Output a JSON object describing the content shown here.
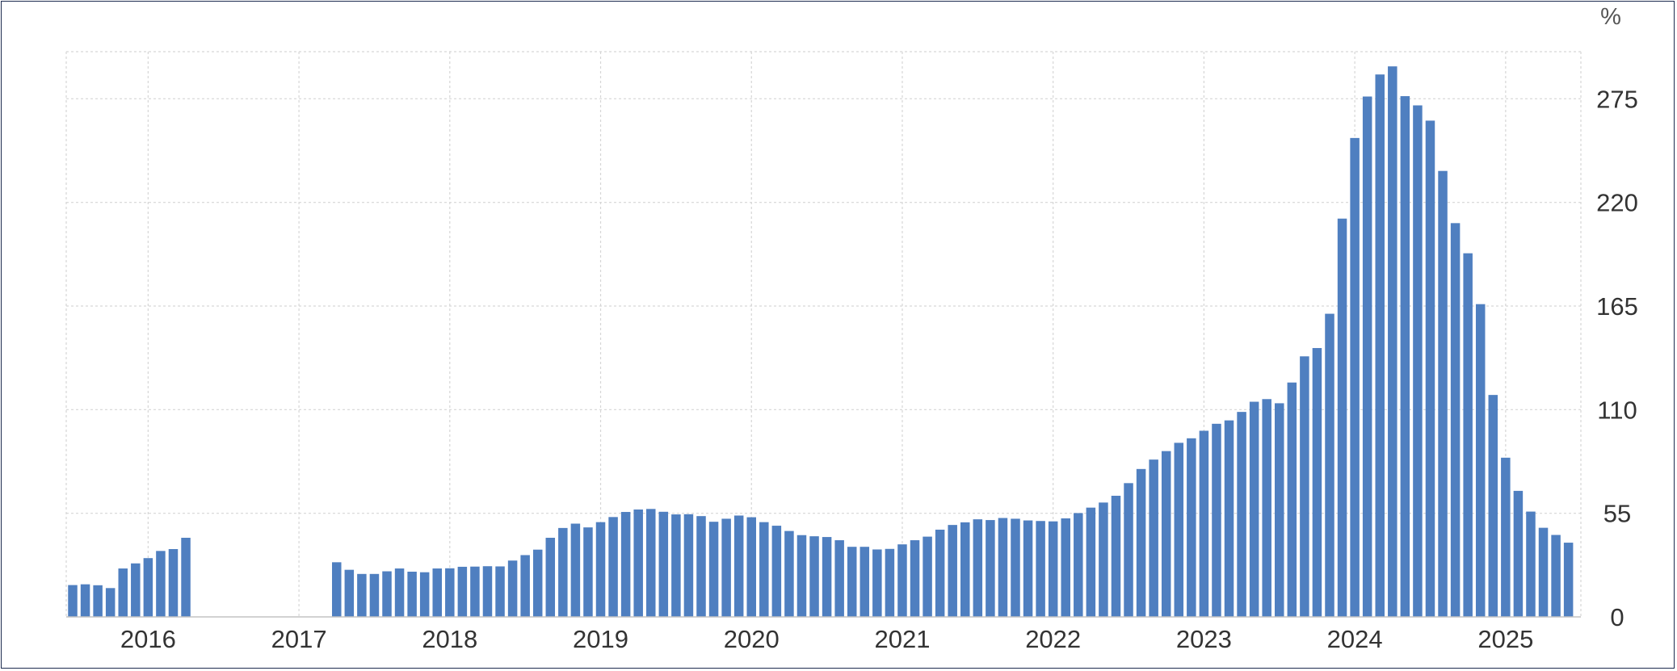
{
  "chart_data": {
    "type": "bar",
    "unit_label": "%",
    "color": "#4f7fc0",
    "ylim": [
      0,
      300
    ],
    "y_ticks": [
      0,
      55,
      110,
      165,
      220,
      275
    ],
    "x_start": "2015-07",
    "x_end": "2025-06",
    "x_tick_labels": [
      "2016",
      "2017",
      "2018",
      "2019",
      "2020",
      "2021",
      "2022",
      "2023",
      "2024",
      "2025"
    ],
    "grid": true,
    "series": [
      {
        "points": [
          {
            "x": "2015-07",
            "y": 16.9
          },
          {
            "x": "2015-08",
            "y": 17.3
          },
          {
            "x": "2015-09",
            "y": 16.8
          },
          {
            "x": "2015-10",
            "y": 15.3
          },
          {
            "x": "2015-11",
            "y": 25.7
          },
          {
            "x": "2015-12",
            "y": 28.4
          },
          {
            "x": "2016-01",
            "y": 31.2
          },
          {
            "x": "2016-02",
            "y": 35.0
          },
          {
            "x": "2016-03",
            "y": 36.0
          },
          {
            "x": "2016-04",
            "y": 42.0
          },
          {
            "x": "2017-04",
            "y": 29.0
          },
          {
            "x": "2017-05",
            "y": 25.0
          },
          {
            "x": "2017-06",
            "y": 22.8
          },
          {
            "x": "2017-07",
            "y": 22.8
          },
          {
            "x": "2017-08",
            "y": 24.2
          },
          {
            "x": "2017-09",
            "y": 25.7
          },
          {
            "x": "2017-10",
            "y": 24.0
          },
          {
            "x": "2017-11",
            "y": 23.7
          },
          {
            "x": "2017-12",
            "y": 25.7
          },
          {
            "x": "2018-01",
            "y": 25.8
          },
          {
            "x": "2018-02",
            "y": 26.6
          },
          {
            "x": "2018-03",
            "y": 26.7
          },
          {
            "x": "2018-04",
            "y": 26.9
          },
          {
            "x": "2018-05",
            "y": 26.8
          },
          {
            "x": "2018-06",
            "y": 29.9
          },
          {
            "x": "2018-07",
            "y": 32.8
          },
          {
            "x": "2018-08",
            "y": 35.7
          },
          {
            "x": "2018-09",
            "y": 42.0
          },
          {
            "x": "2018-10",
            "y": 47.2
          },
          {
            "x": "2018-11",
            "y": 49.5
          },
          {
            "x": "2018-12",
            "y": 47.5
          },
          {
            "x": "2019-01",
            "y": 50.3
          },
          {
            "x": "2019-02",
            "y": 53.0
          },
          {
            "x": "2019-03",
            "y": 55.7
          },
          {
            "x": "2019-04",
            "y": 57.0
          },
          {
            "x": "2019-05",
            "y": 57.3
          },
          {
            "x": "2019-06",
            "y": 55.8
          },
          {
            "x": "2019-07",
            "y": 54.4
          },
          {
            "x": "2019-08",
            "y": 54.5
          },
          {
            "x": "2019-09",
            "y": 53.5
          },
          {
            "x": "2019-10",
            "y": 50.5
          },
          {
            "x": "2019-11",
            "y": 52.1
          },
          {
            "x": "2019-12",
            "y": 53.8
          },
          {
            "x": "2020-01",
            "y": 52.9
          },
          {
            "x": "2020-02",
            "y": 50.3
          },
          {
            "x": "2020-03",
            "y": 48.4
          },
          {
            "x": "2020-04",
            "y": 45.6
          },
          {
            "x": "2020-05",
            "y": 43.4
          },
          {
            "x": "2020-06",
            "y": 42.8
          },
          {
            "x": "2020-07",
            "y": 42.4
          },
          {
            "x": "2020-08",
            "y": 40.7
          },
          {
            "x": "2020-09",
            "y": 37.2
          },
          {
            "x": "2020-10",
            "y": 37.2
          },
          {
            "x": "2020-11",
            "y": 35.8
          },
          {
            "x": "2020-12",
            "y": 36.1
          },
          {
            "x": "2021-01",
            "y": 38.5
          },
          {
            "x": "2021-02",
            "y": 40.7
          },
          {
            "x": "2021-03",
            "y": 42.6
          },
          {
            "x": "2021-04",
            "y": 46.3
          },
          {
            "x": "2021-05",
            "y": 48.8
          },
          {
            "x": "2021-06",
            "y": 50.2
          },
          {
            "x": "2021-07",
            "y": 51.8
          },
          {
            "x": "2021-08",
            "y": 51.4
          },
          {
            "x": "2021-09",
            "y": 52.5
          },
          {
            "x": "2021-10",
            "y": 52.1
          },
          {
            "x": "2021-11",
            "y": 51.2
          },
          {
            "x": "2021-12",
            "y": 50.9
          },
          {
            "x": "2022-01",
            "y": 50.7
          },
          {
            "x": "2022-02",
            "y": 52.3
          },
          {
            "x": "2022-03",
            "y": 55.1
          },
          {
            "x": "2022-04",
            "y": 58.0
          },
          {
            "x": "2022-05",
            "y": 60.7
          },
          {
            "x": "2022-06",
            "y": 64.3
          },
          {
            "x": "2022-07",
            "y": 71.0
          },
          {
            "x": "2022-08",
            "y": 78.5
          },
          {
            "x": "2022-09",
            "y": 83.5
          },
          {
            "x": "2022-10",
            "y": 88.0
          },
          {
            "x": "2022-11",
            "y": 92.4
          },
          {
            "x": "2022-12",
            "y": 94.8
          },
          {
            "x": "2023-01",
            "y": 98.8
          },
          {
            "x": "2023-02",
            "y": 102.5
          },
          {
            "x": "2023-03",
            "y": 104.3
          },
          {
            "x": "2023-04",
            "y": 108.8
          },
          {
            "x": "2023-05",
            "y": 114.2
          },
          {
            "x": "2023-06",
            "y": 115.6
          },
          {
            "x": "2023-07",
            "y": 113.4
          },
          {
            "x": "2023-08",
            "y": 124.4
          },
          {
            "x": "2023-09",
            "y": 138.3
          },
          {
            "x": "2023-10",
            "y": 142.7
          },
          {
            "x": "2023-11",
            "y": 160.9
          },
          {
            "x": "2023-12",
            "y": 211.4
          },
          {
            "x": "2024-01",
            "y": 254.2
          },
          {
            "x": "2024-02",
            "y": 276.2
          },
          {
            "x": "2024-03",
            "y": 287.9
          },
          {
            "x": "2024-04",
            "y": 292.2
          },
          {
            "x": "2024-05",
            "y": 276.4
          },
          {
            "x": "2024-06",
            "y": 271.5
          },
          {
            "x": "2024-07",
            "y": 263.4
          },
          {
            "x": "2024-08",
            "y": 236.7
          },
          {
            "x": "2024-09",
            "y": 209.0
          },
          {
            "x": "2024-10",
            "y": 193.0
          },
          {
            "x": "2024-11",
            "y": 166.0
          },
          {
            "x": "2024-12",
            "y": 117.8
          },
          {
            "x": "2025-01",
            "y": 84.5
          },
          {
            "x": "2025-02",
            "y": 66.9
          },
          {
            "x": "2025-03",
            "y": 55.9
          },
          {
            "x": "2025-04",
            "y": 47.3
          },
          {
            "x": "2025-05",
            "y": 43.5
          },
          {
            "x": "2025-06",
            "y": 39.4
          }
        ]
      }
    ]
  }
}
